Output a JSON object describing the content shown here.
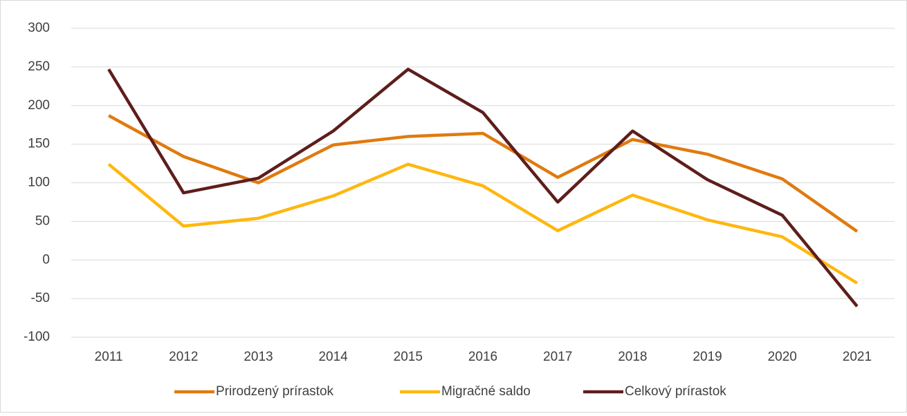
{
  "chart_data": {
    "type": "line",
    "categories": [
      "2011",
      "2012",
      "2013",
      "2014",
      "2015",
      "2016",
      "2017",
      "2018",
      "2019",
      "2020",
      "2021"
    ],
    "series": [
      {
        "name": "Prirodzený prírastok",
        "color": "#e07a0f",
        "values": [
          187,
          134,
          100,
          149,
          160,
          164,
          107,
          156,
          137,
          105,
          37
        ]
      },
      {
        "name": "Migračné saldo",
        "color": "#ffb70f",
        "values": [
          124,
          44,
          54,
          83,
          124,
          96,
          38,
          84,
          52,
          30,
          -30
        ]
      },
      {
        "name": "Celkový prírastok",
        "color": "#5e1e1b",
        "values": [
          247,
          87,
          106,
          167,
          247,
          191,
          75,
          167,
          104,
          58,
          -60
        ]
      }
    ],
    "ylim": [
      -100,
      300
    ],
    "yticks": [
      -100,
      -50,
      0,
      50,
      100,
      150,
      200,
      250,
      300
    ],
    "grid": true,
    "legend": "bottom"
  }
}
